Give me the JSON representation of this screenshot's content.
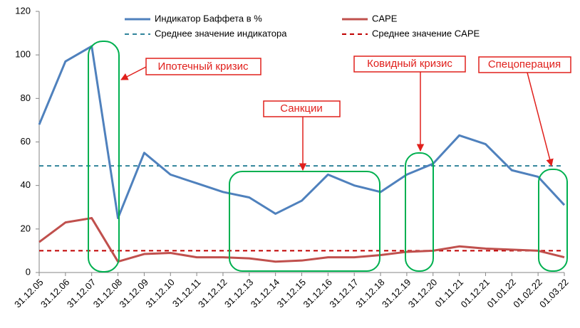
{
  "chart_data": {
    "type": "line",
    "categories": [
      "31.12.05",
      "31.12.06",
      "31.12.07",
      "31.12.08",
      "31.12.09",
      "31.12.10",
      "31.12.11",
      "31.12.12",
      "31.12.13",
      "31.12.14",
      "31.12.15",
      "31.12.16",
      "31.12.17",
      "31.12.18",
      "31.12.19",
      "31.12.20",
      "01.11.21",
      "01.12.21",
      "01.01.22",
      "01.02.22",
      "01.03.22"
    ],
    "series": [
      {
        "name": "Индикатор Баффета в %",
        "color": "#4f81bd",
        "values": [
          68,
          97,
          104,
          25,
          55,
          45,
          41,
          37,
          34.5,
          27,
          33,
          45,
          40,
          37,
          45,
          50,
          63,
          59,
          47,
          44,
          31
        ]
      },
      {
        "name": "CAPE",
        "color": "#c0504d",
        "values": [
          14,
          23,
          25,
          5,
          8.5,
          9,
          7,
          7,
          6.5,
          5,
          5.5,
          7,
          7,
          8,
          9.5,
          10,
          12,
          11,
          10.5,
          10,
          7
        ]
      }
    ],
    "reference_lines": [
      {
        "name": "Среднее значение индикатора",
        "color": "#31849b",
        "value": 49
      },
      {
        "name": "Среднее значение CAPE",
        "color": "#c00000",
        "value": 10
      }
    ],
    "annotations": [
      "Ипотечный кризис",
      "Санкции",
      "Ковидный кризис",
      "Спецоперация"
    ],
    "ylim": [
      0,
      120
    ],
    "yticks": [
      0,
      20,
      40,
      60,
      80,
      100,
      120
    ],
    "grid": false
  }
}
